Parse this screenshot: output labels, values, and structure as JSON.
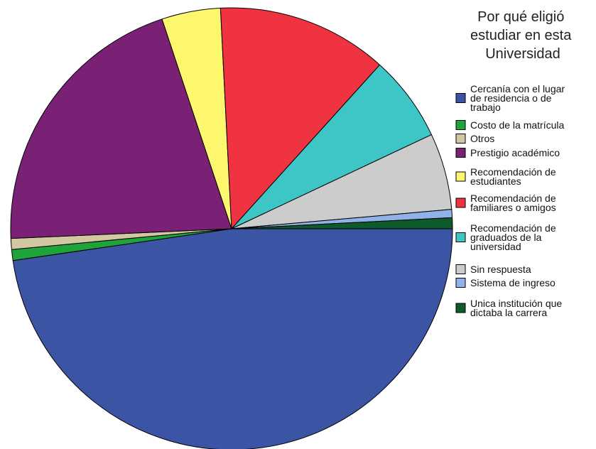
{
  "chart_data": {
    "type": "pie",
    "title": "",
    "legend_title": "Por qué eligió estudiar en esta Universidad",
    "legend_placement": "top-right",
    "start_angle_deg": 0,
    "direction": "clockwise",
    "slices": [
      {
        "label": "Cercanía con el lugar de residencia o de trabajo",
        "value": 47.7,
        "color": "#3b54a4"
      },
      {
        "label": "Costo de la matrícula",
        "value": 0.8,
        "color": "#1fa43a"
      },
      {
        "label": "Otros",
        "value": 0.8,
        "color": "#d3c7a2"
      },
      {
        "label": "Prestigio académico",
        "value": 20.6,
        "color": "#7a2175"
      },
      {
        "label": "Recomendación de estudiantes",
        "value": 4.3,
        "color": "#fcf76c"
      },
      {
        "label": "Recomendación de familiares o amigos",
        "value": 12.5,
        "color": "#ef3340"
      },
      {
        "label": "Recomendación de graduados de la universidad",
        "value": 6.3,
        "color": "#3ec6c6"
      },
      {
        "label": "Sin respuesta",
        "value": 5.6,
        "color": "#cccccc"
      },
      {
        "label": "Sistema de ingreso",
        "value": 0.6,
        "color": "#8fb3e8"
      },
      {
        "label": "Unica institución que dictaba la carrera",
        "value": 0.8,
        "color": "#0d5a2a"
      }
    ],
    "legend": [
      {
        "lines": [
          "Cercanía con el lugar",
          "de residencia o de",
          "trabajo"
        ],
        "color": "#3b54a4"
      },
      {
        "lines": [
          "Costo de la matrícula"
        ],
        "color": "#1fa43a"
      },
      {
        "lines": [
          "Otros"
        ],
        "color": "#d3c7a2"
      },
      {
        "lines": [
          "Prestigio académico"
        ],
        "color": "#7a2175"
      },
      {
        "lines": [
          "Recomendación de",
          "estudiantes"
        ],
        "color": "#fcf76c"
      },
      {
        "lines": [
          "Recomendación de",
          "familiares o amigos"
        ],
        "color": "#ef3340"
      },
      {
        "lines": [
          "Recomendación de",
          "graduados de la",
          "universidad"
        ],
        "color": "#3ec6c6"
      },
      {
        "lines": [
          "Sin respuesta"
        ],
        "color": "#cccccc"
      },
      {
        "lines": [
          "Sistema de ingreso"
        ],
        "color": "#8fb3e8"
      },
      {
        "lines": [
          "Unica institución que",
          "dictaba la carrera"
        ],
        "color": "#0d5a2a"
      }
    ]
  }
}
